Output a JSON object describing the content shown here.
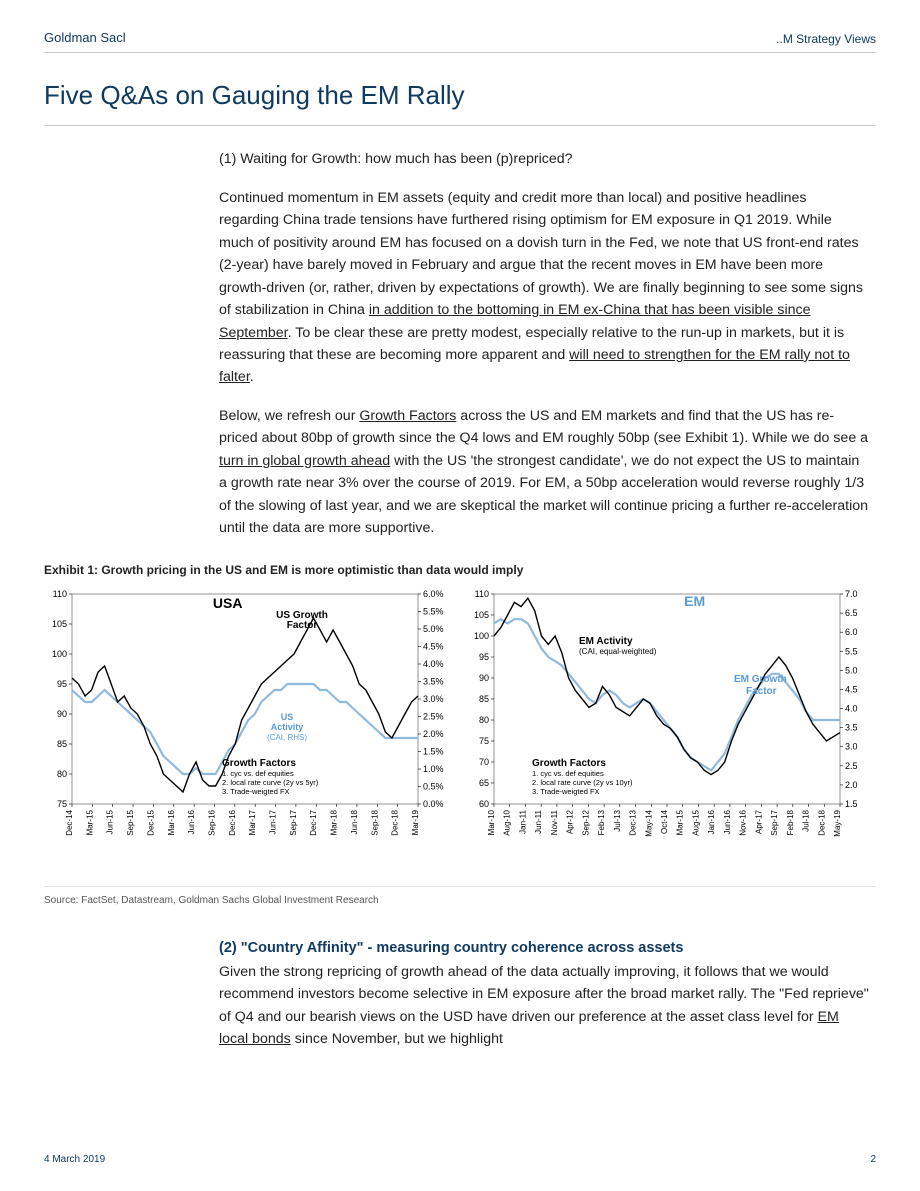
{
  "header": {
    "brand": "Goldman Sacl",
    "doctype": "..M Strategy Views"
  },
  "title": "Five Q&As on Gauging the EM Rally",
  "para1_q": "(1) Waiting for Growth: how much has been (p)repriced?",
  "para2_a": "Continued momentum in EM assets (equity and credit more than local) and positive headlines regarding China trade tensions have furthered rising optimism for EM exposure in Q1 2019. While much of positivity around EM has focused on a dovish turn in the Fed, we note that US front-end rates (2-year) have barely moved in February and argue that the recent moves in EM have been more growth-driven (or, rather, driven by expectations of growth). We are finally beginning to see some signs of stabilization in China ",
  "para2_u1": "in addition to the bottoming in EM ex-China that has been visible since September",
  "para2_b": ". To be clear these are pretty modest, especially relative to the run-up in markets, but it is reassuring that these are becoming more apparent and ",
  "para2_u2": "will need to strengthen for the EM rally not to falter",
  "para2_c": ".",
  "para3_a": "Below, we refresh our ",
  "para3_u1": "Growth Factors",
  "para3_b": " across the US and EM markets and find that the US has re-priced about 80bp of growth since the Q4 lows and EM roughly 50bp (see Exhibit 1). While we do see a ",
  "para3_u2": "turn in global growth ahead",
  "para3_c": " with the US 'the strongest candidate', we do not expect the US to maintain a growth rate near 3% over the course of 2019. For EM, a 50bp acceleration would reverse roughly 1/3 of the slowing of last year, and we are skeptical the market will continue pricing a further re-acceleration until the data are more supportive.",
  "exhibit_title": "Exhibit 1: Growth pricing in the US and EM is more optimistic than data would imply",
  "source": "Source: FactSet, Datastream, Goldman Sachs Global Investment Research",
  "section2_head": "(2) \"Country Affinity\" - measuring country coherence across assets",
  "section2_a": "Given the strong repricing of growth ahead of the data actually improving, it follows that we would recommend investors become selective in EM exposure after the broad market rally. The \"Fed reprieve\" of Q4 and our bearish views on the USD have driven our preference at the asset class level for ",
  "section2_u1": "EM local bonds",
  "section2_b": " since November, but we highlight",
  "footer": {
    "date": "4 March 2019",
    "page": "2"
  },
  "chart_usa": {
    "type": "line-dual-axis",
    "title": "USA",
    "colors": {
      "black_series": "#000000",
      "blue_series": "#8fb9de",
      "tick": "#000",
      "grid": "#dcdcdc"
    },
    "left_axis": {
      "min": 75,
      "max": 110,
      "step": 5,
      "labels": [
        "75",
        "80",
        "85",
        "90",
        "95",
        "100",
        "105",
        "110"
      ]
    },
    "right_axis": {
      "min": 0.0,
      "max": 6.0,
      "step": 0.5,
      "labels": [
        "0.0%",
        "0.5%",
        "1.0%",
        "1.5%",
        "2.0%",
        "2.5%",
        "3.0%",
        "3.5%",
        "4.0%",
        "4.5%",
        "5.0%",
        "5.5%",
        "6.0%"
      ]
    },
    "x_labels": [
      "Dec-14",
      "Mar-15",
      "Jun-15",
      "Sep-15",
      "Dec-15",
      "Mar-16",
      "Jun-16",
      "Sep-16",
      "Dec-16",
      "Mar-17",
      "Jun-17",
      "Sep-17",
      "Dec-17",
      "Mar-18",
      "Jun-18",
      "Sep-18",
      "Dec-18",
      "Mar-19"
    ],
    "series_black_label": "US Growth Factor",
    "series_blue_label_l1": "US",
    "series_blue_label_l2": "Activity",
    "series_blue_label_l3": "(CAI, RHS)",
    "legend_box_title": "Growth Factors",
    "legend_box_items": [
      "1. cyc vs. def equities",
      "2. local rate curve (2y vs 5yr)",
      "3. Trade-weigted FX"
    ],
    "series_black": [
      96,
      95,
      93,
      94,
      97,
      98,
      95,
      92,
      93,
      91,
      90,
      88,
      85,
      83,
      80,
      79,
      78,
      77,
      80,
      82,
      79,
      78,
      78,
      80,
      83,
      85,
      89,
      91,
      93,
      95,
      96,
      97,
      98,
      99,
      100,
      102,
      104,
      106,
      104,
      102,
      104,
      102,
      100,
      98,
      95,
      94,
      92,
      90,
      87,
      86,
      88,
      90,
      92,
      93
    ],
    "series_blue_lhs": [
      94,
      93,
      92,
      92,
      93,
      94,
      93,
      92,
      91,
      90,
      89,
      88,
      87,
      85,
      83,
      82,
      81,
      80,
      80,
      81,
      80,
      80,
      80,
      82,
      84,
      85,
      87,
      89,
      90,
      92,
      93,
      94,
      94,
      95,
      95,
      95,
      95,
      95,
      94,
      94,
      93,
      92,
      92,
      91,
      90,
      89,
      88,
      87,
      86,
      86,
      86,
      86,
      86,
      86
    ]
  },
  "chart_em": {
    "type": "line-dual-axis",
    "title": "EM",
    "colors": {
      "black_series": "#000000",
      "blue_series": "#8fb9de",
      "tick": "#000",
      "grid": "#dcdcdc"
    },
    "left_axis": {
      "min": 60,
      "max": 110,
      "step": 5,
      "labels": [
        "60",
        "65",
        "70",
        "75",
        "80",
        "85",
        "90",
        "95",
        "100",
        "105",
        "110"
      ]
    },
    "right_axis": {
      "min": 1.5,
      "max": 7.0,
      "step": 0.5,
      "labels": [
        "1.5",
        "2.0",
        "2.5",
        "3.0",
        "3.5",
        "4.0",
        "4.5",
        "5.0",
        "5.5",
        "6.0",
        "6.5",
        "7.0"
      ]
    },
    "x_labels": [
      "Mar-10",
      "Aug-10",
      "Jan-11",
      "Jun-11",
      "Nov-11",
      "Apr-12",
      "Sep-12",
      "Feb-13",
      "Jul-13",
      "Dec-13",
      "May-14",
      "Oct-14",
      "Mar-15",
      "Aug-15",
      "Jan-16",
      "Jun-16",
      "Nov-16",
      "Apr-17",
      "Sep-17",
      "Feb-18",
      "Jul-18",
      "Dec-18",
      "May-19"
    ],
    "series_black_label_l1": "EM Activity",
    "series_black_label_l2": "(CAI, equal-weighted)",
    "series_blue_label_l1": "EM Growth",
    "series_blue_label_l2": "Factor",
    "legend_box_title": "Growth Factors",
    "legend_box_items": [
      "1. cyc vs. def equities",
      "2. local rate curve (2y vs 10yr)",
      "3. Trade-weigted FX"
    ],
    "series_black": [
      100,
      102,
      105,
      108,
      107,
      109,
      106,
      100,
      98,
      100,
      96,
      90,
      87,
      85,
      83,
      84,
      88,
      86,
      83,
      82,
      81,
      83,
      85,
      84,
      81,
      79,
      78,
      76,
      73,
      71,
      70,
      68,
      67,
      68,
      70,
      75,
      79,
      82,
      85,
      88,
      91,
      93,
      95,
      93,
      90,
      86,
      82,
      79,
      77,
      75,
      76,
      77
    ],
    "series_blue_lhs": [
      103,
      104,
      103,
      104,
      104,
      103,
      100,
      97,
      95,
      94,
      93,
      91,
      89,
      87,
      85,
      84,
      86,
      87,
      86,
      84,
      83,
      84,
      85,
      84,
      82,
      80,
      78,
      76,
      73,
      71,
      70,
      69,
      68,
      70,
      72,
      76,
      80,
      83,
      86,
      88,
      90,
      91,
      91,
      89,
      87,
      85,
      82,
      80,
      80,
      80,
      80,
      80
    ]
  }
}
